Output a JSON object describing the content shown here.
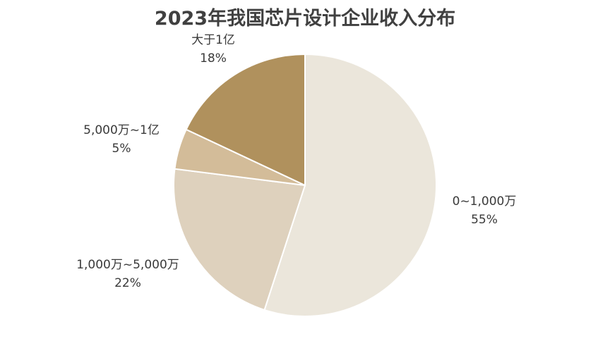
{
  "chart_data": {
    "type": "pie",
    "title": "2023年我国芯片设计企业收入分布",
    "slices": [
      {
        "label": "0~1,000万",
        "value": 55,
        "value_label": "55%",
        "color": "#ebe6db"
      },
      {
        "label": "1,000万~5,000万",
        "value": 22,
        "value_label": "22%",
        "color": "#ded1bd"
      },
      {
        "label": "5,000万~1亿",
        "value": 5,
        "value_label": "5%",
        "color": "#d3bc99"
      },
      {
        "label": "大于1亿",
        "value": 18,
        "value_label": "18%",
        "color": "#b0915d"
      }
    ],
    "start": "12 o'clock",
    "direction": "clockwise"
  }
}
